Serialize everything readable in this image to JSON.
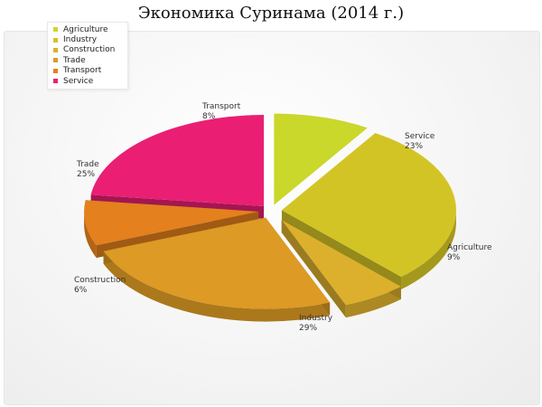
{
  "title": "Экономика Суринама (2014 г.)",
  "chart_data": {
    "type": "pie",
    "title": "Экономика Суринама (2014 г.)",
    "legend": "top-left",
    "slices": [
      {
        "name": "Agriculture",
        "value": 9,
        "value_label": "9%",
        "color": "#cad72b"
      },
      {
        "name": "Industry",
        "value": 29,
        "value_label": "29%",
        "color": "#d3c425"
      },
      {
        "name": "Construction",
        "value": 6,
        "value_label": "6%",
        "color": "#dcb02c"
      },
      {
        "name": "Trade",
        "value": 25,
        "value_label": "25%",
        "color": "#dd9a24"
      },
      {
        "name": "Transport",
        "value": 8,
        "value_label": "8%",
        "color": "#e4801d"
      },
      {
        "name": "Service",
        "value": 23,
        "value_label": "23%",
        "color": "#ea1f73"
      }
    ]
  }
}
